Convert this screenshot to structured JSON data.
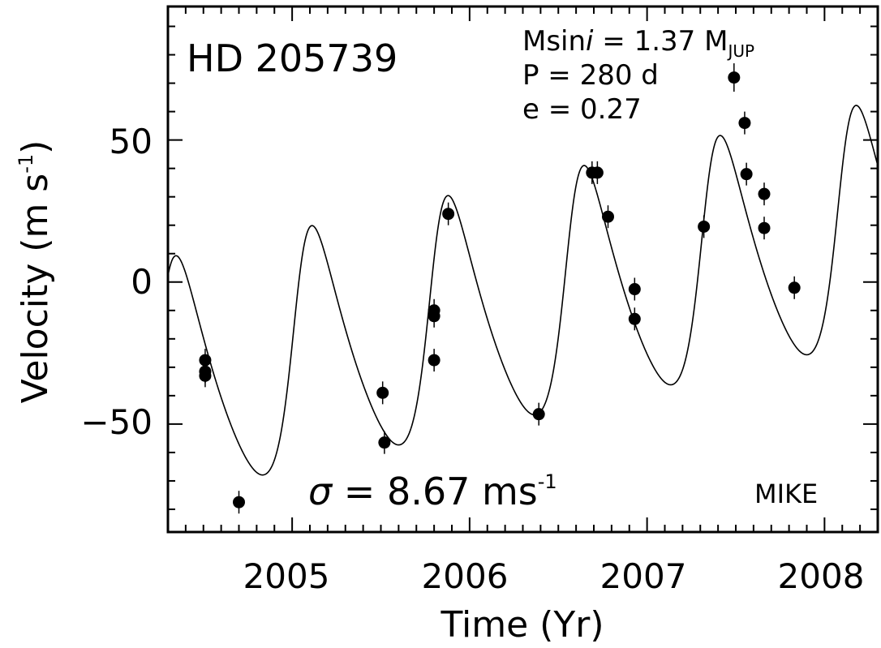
{
  "chart_data": {
    "type": "scatter",
    "title": "HD 205739",
    "xlabel": "Time (Yr)",
    "ylabel": "Velocity (m s",
    "ylabel_sup": "-1",
    "xlim": [
      2004.3,
      2008.3
    ],
    "ylim": [
      -88,
      97
    ],
    "x_ticks": [
      2005,
      2006,
      2007,
      2008
    ],
    "x_tick_labels": [
      "2005",
      "2006",
      "2007",
      "2008"
    ],
    "y_ticks": [
      -50,
      0,
      50
    ],
    "y_tick_labels": [
      "−50",
      "0",
      "50"
    ],
    "grid": false,
    "annotations": {
      "msini_label": "Msin",
      "msini_i": "i",
      "msini_value": " = 1.37 M",
      "msini_sub": "JUP",
      "period": "P = 280 d",
      "eccentricity": "e = 0.27",
      "sigma_symbol": "σ",
      "sigma_value": " = 8.67 ms",
      "sigma_sup": "-1",
      "instrument": "MIKE"
    },
    "series": [
      {
        "type": "scatter",
        "points": [
          {
            "x": 2004.51,
            "y": -27.5,
            "err": 4
          },
          {
            "x": 2004.51,
            "y": -31.5,
            "err": 4
          },
          {
            "x": 2004.51,
            "y": -33.0,
            "err": 4
          },
          {
            "x": 2004.7,
            "y": -77.5,
            "err": 4
          },
          {
            "x": 2005.51,
            "y": -39.0,
            "err": 4
          },
          {
            "x": 2005.52,
            "y": -56.5,
            "err": 4
          },
          {
            "x": 2005.8,
            "y": -10.0,
            "err": 4
          },
          {
            "x": 2005.8,
            "y": -12.0,
            "err": 4
          },
          {
            "x": 2005.8,
            "y": -27.5,
            "err": 4
          },
          {
            "x": 2005.88,
            "y": 24.0,
            "err": 4
          },
          {
            "x": 2006.39,
            "y": -46.5,
            "err": 4
          },
          {
            "x": 2006.69,
            "y": 38.5,
            "err": 4
          },
          {
            "x": 2006.72,
            "y": 38.5,
            "err": 4
          },
          {
            "x": 2006.78,
            "y": 23.0,
            "err": 4
          },
          {
            "x": 2006.93,
            "y": -2.5,
            "err": 4
          },
          {
            "x": 2006.93,
            "y": -13.0,
            "err": 4
          },
          {
            "x": 2007.32,
            "y": 19.5,
            "err": 4
          },
          {
            "x": 2007.49,
            "y": 72.0,
            "err": 5
          },
          {
            "x": 2007.55,
            "y": 56.0,
            "err": 4
          },
          {
            "x": 2007.56,
            "y": 38.0,
            "err": 4
          },
          {
            "x": 2007.66,
            "y": 31.0,
            "err": 4
          },
          {
            "x": 2007.66,
            "y": 19.0,
            "err": 4
          },
          {
            "x": 2007.83,
            "y": -2.0,
            "err": 4
          }
        ]
      },
      {
        "type": "line",
        "model": "keplerian_fit",
        "period_days": 280,
        "eccentricity": 0.27,
        "semi_amplitude": 42,
        "omega_deg": 300,
        "periastron_time": 2005.8,
        "offset": -39.0,
        "slope_per_yr": 13.8
      }
    ]
  }
}
